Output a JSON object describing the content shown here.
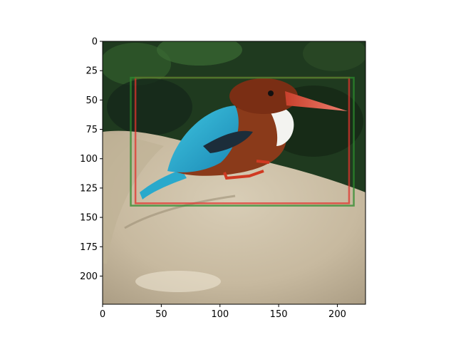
{
  "axes": {
    "x_range": [
      0,
      224
    ],
    "y_range": [
      224,
      0
    ],
    "x_ticks": [
      0,
      50,
      100,
      150,
      200
    ],
    "y_ticks": [
      0,
      25,
      50,
      75,
      100,
      125,
      150,
      175,
      200
    ],
    "x_tick_labels": [
      "0",
      "50",
      "100",
      "150",
      "200"
    ],
    "y_tick_labels": [
      "0",
      "25",
      "50",
      "75",
      "100",
      "125",
      "150",
      "175",
      "200"
    ]
  },
  "image": {
    "subject": "white-throated kingfisher perched on a rock",
    "background_color": "#1f3a1f",
    "rock_color": "#c9bda6"
  },
  "boxes": [
    {
      "name": "red-box",
      "color": "#e0342e",
      "x0": 28,
      "y0": 31,
      "x1": 210,
      "y1": 138
    },
    {
      "name": "green-box",
      "color": "#2e8b2e",
      "x0": 24,
      "y0": 31,
      "x1": 214,
      "y1": 140
    }
  ]
}
